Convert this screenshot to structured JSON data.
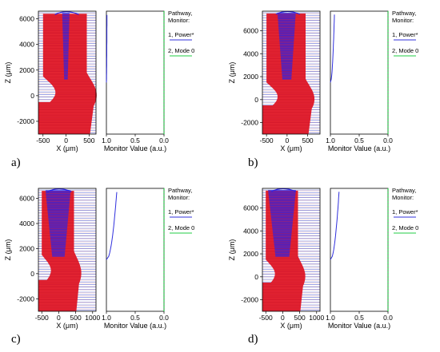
{
  "panels": [
    {
      "caption": "a)",
      "field_plot": {
        "ylabel": "Z (μm)",
        "xlabel": "X (μm)",
        "y_ticks": [
          "6000",
          "4000",
          "2000",
          "0",
          "-2000"
        ],
        "x_ticks": [
          "-500",
          "0",
          "500"
        ],
        "xlim": [
          -600,
          650
        ],
        "ylim": [
          -3000,
          6600
        ],
        "blue_spread": 0.1
      },
      "monitor_plot": {
        "xlabel": "Monitor Value (a.u.)",
        "x_ticks": [
          "1.0",
          "0.5",
          "0.0"
        ],
        "power_start": 1.0,
        "power_end": 0.99
      },
      "legend": {
        "title_line1": "Pathway,",
        "title_line2": "Monitor:",
        "entry1": "1, Power*",
        "entry2": "2, Mode 0"
      }
    },
    {
      "caption": "b)",
      "field_plot": {
        "ylabel": "Z (μm)",
        "xlabel": "X (μm)",
        "y_ticks": [
          "6000",
          "4000",
          "2000",
          "0",
          "-2000"
        ],
        "x_ticks": [
          "-500",
          "0",
          "500"
        ],
        "xlim": [
          -600,
          800
        ],
        "ylim": [
          -3000,
          7700
        ],
        "blue_spread": 0.5
      },
      "monitor_plot": {
        "xlabel": "Monitor Value (a.u.)",
        "x_ticks": [
          "1.0",
          "0.5",
          "0.0"
        ],
        "power_start": 1.0,
        "power_end": 0.93
      },
      "legend": {
        "title_line1": "Pathway,",
        "title_line2": "Monitor:",
        "entry1": "1, Power*",
        "entry2": "2, Mode 0"
      }
    },
    {
      "caption": "c)",
      "field_plot": {
        "ylabel": "Z (μm)",
        "xlabel": "X (μm)",
        "y_ticks": [
          "6000",
          "4000",
          "2000",
          "0",
          "-2000"
        ],
        "x_ticks": [
          "-500",
          "0",
          "500",
          "1000"
        ],
        "xlim": [
          -600,
          1100
        ],
        "ylim": [
          -3000,
          6800
        ],
        "blue_spread": 0.75
      },
      "monitor_plot": {
        "xlabel": "Monitor Value (a.u.)",
        "x_ticks": [
          "1.0",
          "0.5",
          "0.0"
        ],
        "power_start": 1.0,
        "power_end": 0.82
      },
      "legend": {
        "title_line1": "Pathway,",
        "title_line2": "Monitor:",
        "entry1": "1, Power*",
        "entry2": "2, Mode 0"
      }
    },
    {
      "caption": "d)",
      "field_plot": {
        "ylabel": "Z (μm)",
        "xlabel": "X (μm)",
        "y_ticks": [
          "6000",
          "4000",
          "2000",
          "0",
          "-2000"
        ],
        "x_ticks": [
          "-500",
          "0",
          "500",
          "1000"
        ],
        "xlim": [
          -600,
          1100
        ],
        "ylim": [
          -3000,
          7700
        ],
        "blue_spread": 0.85
      },
      "monitor_plot": {
        "xlabel": "Monitor Value (a.u.)",
        "x_ticks": [
          "1.0",
          "0.5",
          "0.0"
        ],
        "power_start": 1.0,
        "power_end": 0.85
      },
      "legend": {
        "title_line1": "Pathway,",
        "title_line2": "Monitor:",
        "entry1": "1, Power*",
        "entry2": "2, Mode 0"
      }
    }
  ],
  "colors": {
    "field_red": "#e01020",
    "field_blue": "#2a22e6",
    "grid_blue": "#3344cc",
    "power_line": "#3030dd",
    "mode_line": "#22cc44",
    "frame": "#000000"
  }
}
